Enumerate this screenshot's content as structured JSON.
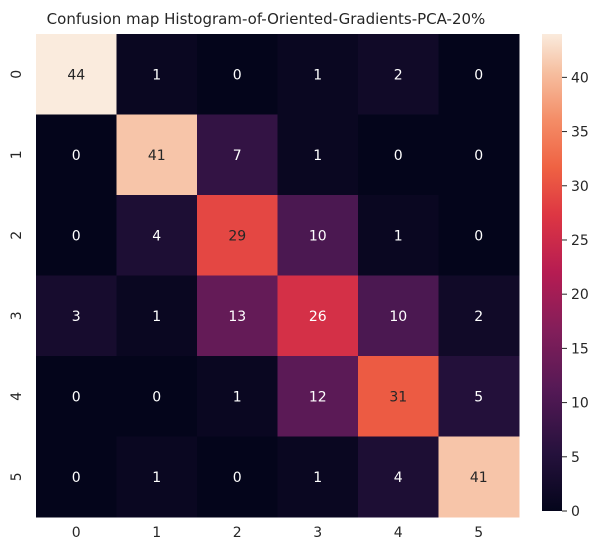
{
  "chart_data": {
    "type": "heatmap",
    "title": "Confusion map Histogram-of-Oriented-Gradients-PCA-20%",
    "xlabel": "",
    "ylabel": "",
    "x_categories": [
      "0",
      "1",
      "2",
      "3",
      "4",
      "5"
    ],
    "y_categories": [
      "0",
      "1",
      "2",
      "3",
      "4",
      "5"
    ],
    "matrix": [
      [
        44,
        1,
        0,
        1,
        2,
        0
      ],
      [
        0,
        41,
        7,
        1,
        0,
        0
      ],
      [
        0,
        4,
        29,
        10,
        1,
        0
      ],
      [
        3,
        1,
        13,
        26,
        10,
        2
      ],
      [
        0,
        0,
        1,
        12,
        31,
        5
      ],
      [
        0,
        1,
        0,
        1,
        4,
        41
      ]
    ],
    "colorbar": {
      "min": 0,
      "max": 44,
      "ticks": [
        "0",
        "5",
        "10",
        "15",
        "20",
        "25",
        "30",
        "35",
        "40"
      ],
      "colormap": "rocket"
    },
    "grid": false
  }
}
